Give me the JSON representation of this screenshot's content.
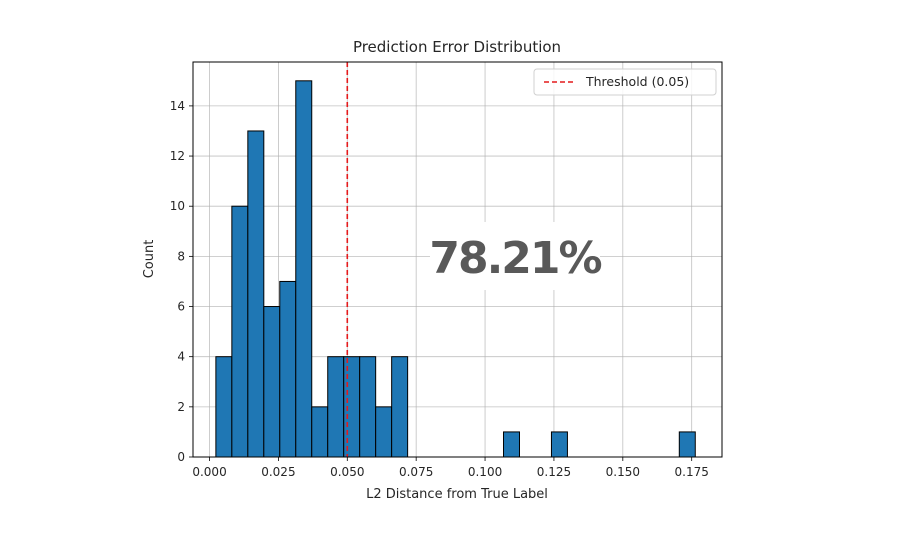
{
  "chart_data": {
    "type": "bar",
    "title": "Prediction Error Distribution",
    "xlabel": "L2 Distance from True Label",
    "ylabel": "Count",
    "xlim": [
      -0.006,
      0.186
    ],
    "ylim": [
      0,
      15.75
    ],
    "xticks": [
      0.0,
      0.025,
      0.05,
      0.075,
      0.1,
      0.125,
      0.15,
      0.175
    ],
    "xtick_labels": [
      "0.000",
      "0.025",
      "0.050",
      "0.075",
      "0.100",
      "0.125",
      "0.150",
      "0.175"
    ],
    "yticks": [
      0,
      2,
      4,
      6,
      8,
      10,
      12,
      14
    ],
    "ytick_labels": [
      "0",
      "2",
      "4",
      "6",
      "8",
      "10",
      "12",
      "14"
    ],
    "bin_width": 0.0058,
    "bins": [
      {
        "x0": 0.0023,
        "count": 4
      },
      {
        "x0": 0.0081,
        "count": 10
      },
      {
        "x0": 0.0139,
        "count": 13
      },
      {
        "x0": 0.0197,
        "count": 6
      },
      {
        "x0": 0.0255,
        "count": 7
      },
      {
        "x0": 0.0313,
        "count": 15
      },
      {
        "x0": 0.0371,
        "count": 2
      },
      {
        "x0": 0.0429,
        "count": 4
      },
      {
        "x0": 0.0487,
        "count": 4
      },
      {
        "x0": 0.0545,
        "count": 4
      },
      {
        "x0": 0.0603,
        "count": 2
      },
      {
        "x0": 0.0661,
        "count": 4
      },
      {
        "x0": 0.1067,
        "count": 1
      },
      {
        "x0": 0.1241,
        "count": 1
      },
      {
        "x0": 0.1705,
        "count": 1
      }
    ],
    "bar_color": "#1f77b4",
    "threshold": {
      "value": 0.05,
      "label": "Threshold (0.05)",
      "color": "#e41a1c"
    },
    "legend_position": "top-right",
    "grid": true
  },
  "overlay": {
    "text": "78.21%"
  }
}
